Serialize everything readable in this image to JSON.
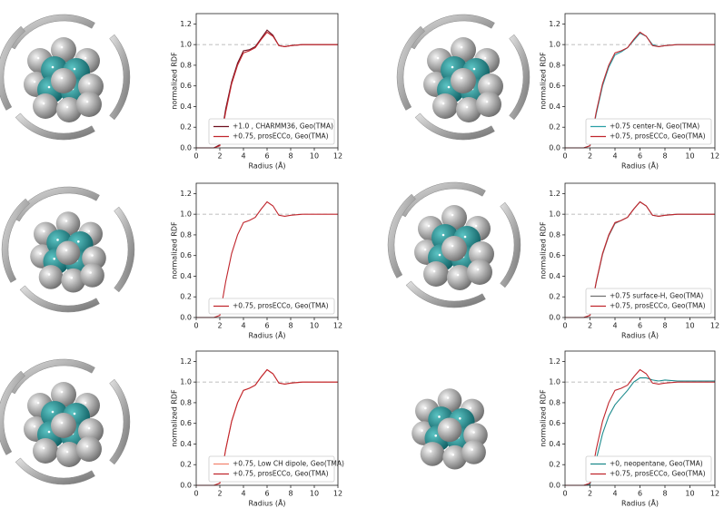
{
  "chart_data": [
    {
      "type": "line",
      "ylabel": "normalized RDF",
      "xlabel": "Radius (Å)",
      "xlim": [
        0,
        12
      ],
      "ylim": [
        0,
        1.3
      ],
      "xticks": [
        0,
        2,
        4,
        6,
        8,
        10,
        12
      ],
      "yticks": [
        {
          "value": 0,
          "label": "0.0"
        },
        0.2,
        0.4,
        0.6,
        0.8,
        {
          "value": 1,
          "label": "1.0"
        },
        1.2
      ],
      "reference_line": 1,
      "legend": "lower right",
      "x": [
        0,
        1,
        1.5,
        2,
        2.5,
        3,
        3.5,
        4,
        4.5,
        5,
        5.5,
        6,
        6.5,
        7,
        7.5,
        8,
        9,
        10,
        11,
        12
      ],
      "series": [
        {
          "name": "+1.0 , CHARMM36, Geo(TMA)",
          "color": "#6e0f1f",
          "values": [
            0,
            0,
            0,
            0.03,
            0.38,
            0.64,
            0.82,
            0.94,
            0.95,
            0.98,
            1.06,
            1.14,
            1.09,
            0.99,
            0.98,
            0.99,
            1.0,
            1.0,
            1.0,
            1.0
          ]
        },
        {
          "name": "+0.75, prosECCo, Geo(TMA)",
          "color": "#c0262d",
          "values": [
            0,
            0,
            0,
            0.02,
            0.35,
            0.62,
            0.8,
            0.92,
            0.94,
            0.97,
            1.05,
            1.12,
            1.08,
            0.99,
            0.98,
            0.99,
            1.0,
            1.0,
            1.0,
            1.0
          ]
        }
      ]
    },
    {
      "type": "line",
      "ylabel": "normalized RDF",
      "xlabel": "Radius (Å)",
      "xlim": [
        0,
        12
      ],
      "ylim": [
        0,
        1.3
      ],
      "xticks": [
        0,
        2,
        4,
        6,
        8,
        10,
        12
      ],
      "yticks": [
        {
          "value": 0,
          "label": "0.0"
        },
        0.2,
        0.4,
        0.6,
        0.8,
        {
          "value": 1,
          "label": "1.0"
        },
        1.2
      ],
      "reference_line": 1,
      "legend": "lower right",
      "x": [
        0,
        1,
        1.5,
        2,
        2.5,
        3,
        3.5,
        4,
        4.5,
        5,
        5.5,
        6,
        6.5,
        7,
        7.5,
        8,
        9,
        10,
        11,
        12
      ],
      "series": [
        {
          "name": "+0.75 center-N, Geo(TMA)",
          "color": "#2a9fa6",
          "values": [
            0,
            0,
            0,
            0.02,
            0.33,
            0.6,
            0.78,
            0.9,
            0.93,
            0.97,
            1.04,
            1.11,
            1.08,
            1.0,
            0.98,
            0.99,
            1.0,
            1.0,
            1.0,
            1.0
          ]
        },
        {
          "name": "+0.75, prosECCo, Geo(TMA)",
          "color": "#c0262d",
          "values": [
            0,
            0,
            0,
            0.02,
            0.35,
            0.62,
            0.8,
            0.92,
            0.94,
            0.97,
            1.05,
            1.12,
            1.08,
            0.99,
            0.98,
            0.99,
            1.0,
            1.0,
            1.0,
            1.0
          ]
        }
      ]
    },
    {
      "type": "line",
      "ylabel": "normalized RDF",
      "xlabel": "Radius (Å)",
      "xlim": [
        0,
        12
      ],
      "ylim": [
        0,
        1.3
      ],
      "xticks": [
        0,
        2,
        4,
        6,
        8,
        10,
        12
      ],
      "yticks": [
        {
          "value": 0,
          "label": "0.0"
        },
        0.2,
        0.4,
        0.6,
        0.8,
        {
          "value": 1,
          "label": "1.0"
        },
        1.2
      ],
      "reference_line": 1,
      "legend": "lower right",
      "x": [
        0,
        1,
        1.5,
        2,
        2.5,
        3,
        3.5,
        4,
        4.5,
        5,
        5.5,
        6,
        6.5,
        7,
        7.5,
        8,
        9,
        10,
        11,
        12
      ],
      "series": [
        {
          "name": "+0.75, prosECCo, Geo(TMA)",
          "color": "#c0262d",
          "values": [
            0,
            0,
            0,
            0.02,
            0.35,
            0.62,
            0.8,
            0.92,
            0.94,
            0.97,
            1.05,
            1.12,
            1.08,
            0.99,
            0.98,
            0.99,
            1.0,
            1.0,
            1.0,
            1.0
          ]
        }
      ]
    },
    {
      "type": "line",
      "ylabel": "normalized RDF",
      "xlabel": "Radius (Å)",
      "xlim": [
        0,
        12
      ],
      "ylim": [
        0,
        1.3
      ],
      "xticks": [
        0,
        2,
        4,
        6,
        8,
        10,
        12
      ],
      "yticks": [
        {
          "value": 0,
          "label": "0.0"
        },
        0.2,
        0.4,
        0.6,
        0.8,
        {
          "value": 1,
          "label": "1.0"
        },
        1.2
      ],
      "reference_line": 1,
      "legend": "lower right",
      "x": [
        0,
        1,
        1.5,
        2,
        2.5,
        3,
        3.5,
        4,
        4.5,
        5,
        5.5,
        6,
        6.5,
        7,
        7.5,
        8,
        9,
        10,
        11,
        12
      ],
      "series": [
        {
          "name": "+0.75 surface-H, Geo(TMA)",
          "color": "#707070",
          "values": [
            0,
            0,
            0,
            0.02,
            0.34,
            0.61,
            0.79,
            0.91,
            0.94,
            0.97,
            1.05,
            1.12,
            1.08,
            0.99,
            0.98,
            0.99,
            1.0,
            1.0,
            1.0,
            1.0
          ]
        },
        {
          "name": "+0.75, prosECCo, Geo(TMA)",
          "color": "#c0262d",
          "values": [
            0,
            0,
            0,
            0.02,
            0.35,
            0.62,
            0.8,
            0.92,
            0.94,
            0.97,
            1.05,
            1.12,
            1.08,
            0.99,
            0.98,
            0.99,
            1.0,
            1.0,
            1.0,
            1.0
          ]
        }
      ]
    },
    {
      "type": "line",
      "ylabel": "normalized RDF",
      "xlabel": "Radius (Å)",
      "xlim": [
        0,
        12
      ],
      "ylim": [
        0,
        1.3
      ],
      "xticks": [
        0,
        2,
        4,
        6,
        8,
        10,
        12
      ],
      "yticks": [
        {
          "value": 0,
          "label": "0.0"
        },
        0.2,
        0.4,
        0.6,
        0.8,
        {
          "value": 1,
          "label": "1.0"
        },
        1.2
      ],
      "reference_line": 1,
      "legend": "lower right",
      "x": [
        0,
        1,
        1.5,
        2,
        2.5,
        3,
        3.5,
        4,
        4.5,
        5,
        5.5,
        6,
        6.5,
        7,
        7.5,
        8,
        9,
        10,
        11,
        12
      ],
      "series": [
        {
          "name": "+0.75, Low CH dipole, Geo(TMA)",
          "color": "#f2846f",
          "values": [
            0,
            0,
            0,
            0.02,
            0.35,
            0.62,
            0.8,
            0.92,
            0.94,
            0.97,
            1.05,
            1.12,
            1.08,
            0.99,
            0.98,
            0.99,
            1.0,
            1.0,
            1.0,
            1.0
          ]
        },
        {
          "name": "+0.75, prosECCo, Geo(TMA)",
          "color": "#c0262d",
          "values": [
            0,
            0,
            0,
            0.02,
            0.35,
            0.62,
            0.8,
            0.92,
            0.94,
            0.97,
            1.05,
            1.12,
            1.08,
            0.99,
            0.98,
            0.99,
            1.0,
            1.0,
            1.0,
            1.0
          ]
        }
      ]
    },
    {
      "type": "line",
      "ylabel": "normalized RDF",
      "xlabel": "Radius (Å)",
      "xlim": [
        0,
        12
      ],
      "ylim": [
        0,
        1.3
      ],
      "xticks": [
        0,
        2,
        4,
        6,
        8,
        10,
        12
      ],
      "yticks": [
        {
          "value": 0,
          "label": "0.0"
        },
        0.2,
        0.4,
        0.6,
        0.8,
        {
          "value": 1,
          "label": "1.0"
        },
        1.2
      ],
      "reference_line": 1,
      "legend": "lower right",
      "x": [
        0,
        1,
        1.5,
        2,
        2.5,
        3,
        3.5,
        4,
        4.5,
        5,
        5.5,
        6,
        6.5,
        7,
        7.5,
        8,
        9,
        10,
        11,
        12
      ],
      "series": [
        {
          "name": "+0, neopentane, Geo(TMA)",
          "color": "#1c8a8c",
          "values": [
            0,
            0,
            0,
            0.01,
            0.25,
            0.5,
            0.67,
            0.78,
            0.85,
            0.92,
            1.0,
            1.04,
            1.04,
            1.02,
            1.01,
            1.02,
            1.01,
            1.01,
            1.01,
            1.01
          ]
        },
        {
          "name": "+0.75, prosECCo, Geo(TMA)",
          "color": "#c0262d",
          "values": [
            0,
            0,
            0,
            0.02,
            0.35,
            0.62,
            0.8,
            0.92,
            0.94,
            0.97,
            1.05,
            1.12,
            1.08,
            0.99,
            0.98,
            0.99,
            1.0,
            1.0,
            1.0,
            1.0
          ]
        }
      ]
    }
  ]
}
